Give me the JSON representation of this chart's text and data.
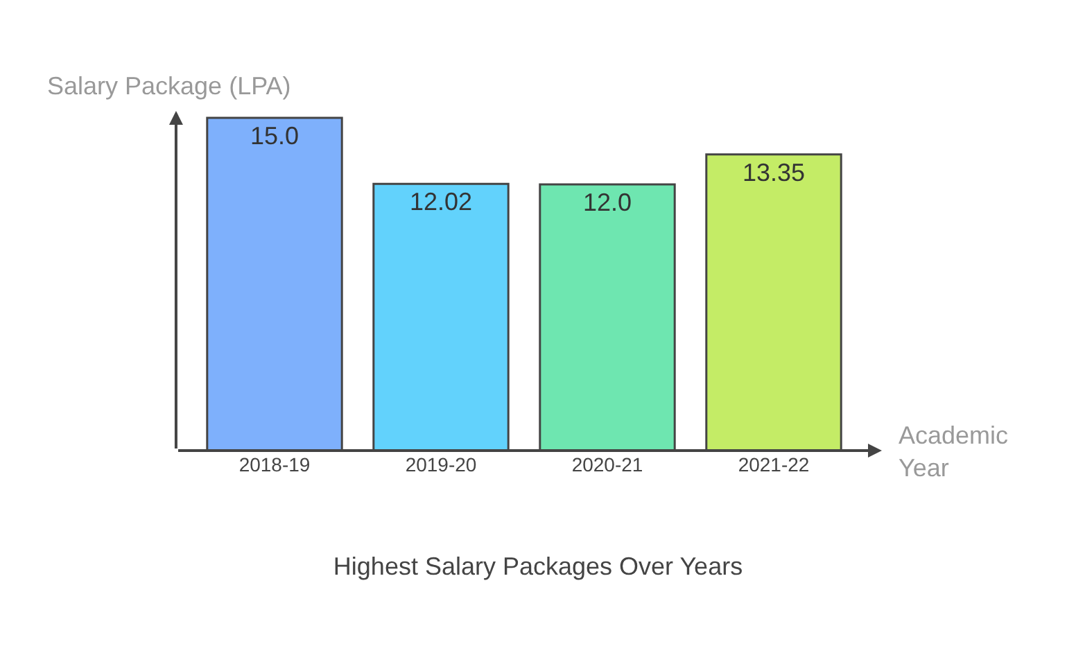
{
  "chart_data": {
    "type": "bar",
    "title": "Highest Salary Packages Over Years",
    "xlabel": "Academic Year",
    "ylabel": "Salary Package (LPA)",
    "categories": [
      "2018-19",
      "2019-20",
      "2020-21",
      "2021-22"
    ],
    "values": [
      15.0,
      12.02,
      12.0,
      13.35
    ],
    "value_labels": [
      "15.0",
      "12.02",
      "12.0",
      "13.35"
    ],
    "colors": [
      "#7eb0fc",
      "#62d2fc",
      "#6ee6b0",
      "#c4ec66"
    ],
    "grid": false,
    "legend": false
  }
}
